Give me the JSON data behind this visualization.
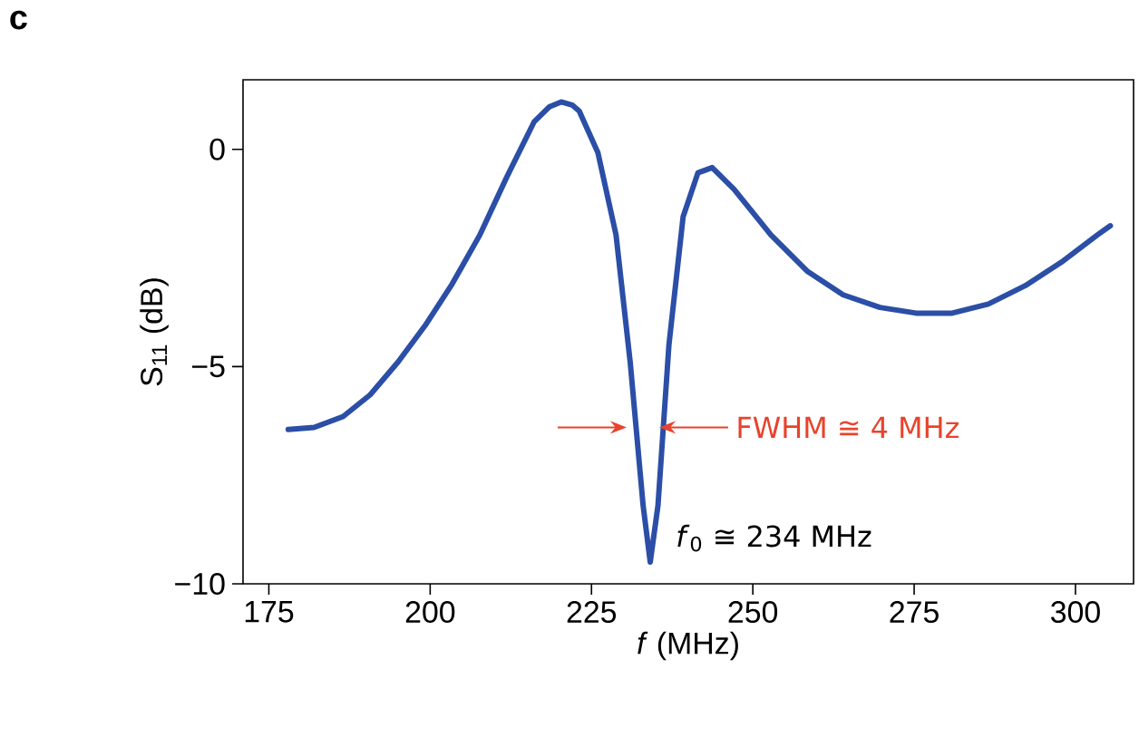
{
  "chart_data": {
    "type": "line",
    "xlabel": "*f* (MHz)",
    "ylabel": "S$_{11}$ (dB)",
    "xlim": [
      171,
      309
    ],
    "ylim": [
      -10,
      1.6
    ],
    "xticks": [
      175,
      200,
      225,
      250,
      275,
      300
    ],
    "yticks": [
      {
        "value": 0,
        "label": "0"
      },
      {
        "value": -5,
        "label": "−5"
      },
      {
        "value": -10,
        "label": "−10"
      }
    ],
    "grid": false,
    "marker": "none",
    "line_style": "solid",
    "annotations": [
      "c",
      {
        "text": "FWHM ≅ 4 MHz",
        "x": 235.5,
        "y": -6.4
      },
      {
        "text": "*f*$_{0}$ ≅ 234 MHz",
        "x": 234,
        "y": -9.5
      }
    ],
    "series": [
      {
        "color": "#2b4ea6",
        "x": [
          178,
          182,
          186.5,
          190.7,
          195,
          199.2,
          203.4,
          207.7,
          211.9,
          216.1,
          218.5,
          220.3,
          222,
          223.1,
          226,
          228.8,
          231,
          233,
          234.1,
          235.3,
          237,
          239.2,
          241.5,
          243.7,
          247.1,
          252.8,
          258.4,
          264,
          269.7,
          275.3,
          280.9,
          286.5,
          292.2,
          297.8,
          303.4,
          305.4
        ],
        "values": [
          -6.45,
          -6.4,
          -6.15,
          -5.65,
          -4.9,
          -4.06,
          -3.1,
          -1.97,
          -0.63,
          0.63,
          0.98,
          1.09,
          1.02,
          0.88,
          -0.08,
          -1.97,
          -4.9,
          -8.2,
          -9.5,
          -8.2,
          -4.5,
          -1.55,
          -0.54,
          -0.42,
          -0.92,
          -1.97,
          -2.8,
          -3.35,
          -3.64,
          -3.77,
          -3.77,
          -3.56,
          -3.14,
          -2.6,
          -1.97,
          -1.76
        ]
      }
    ]
  }
}
